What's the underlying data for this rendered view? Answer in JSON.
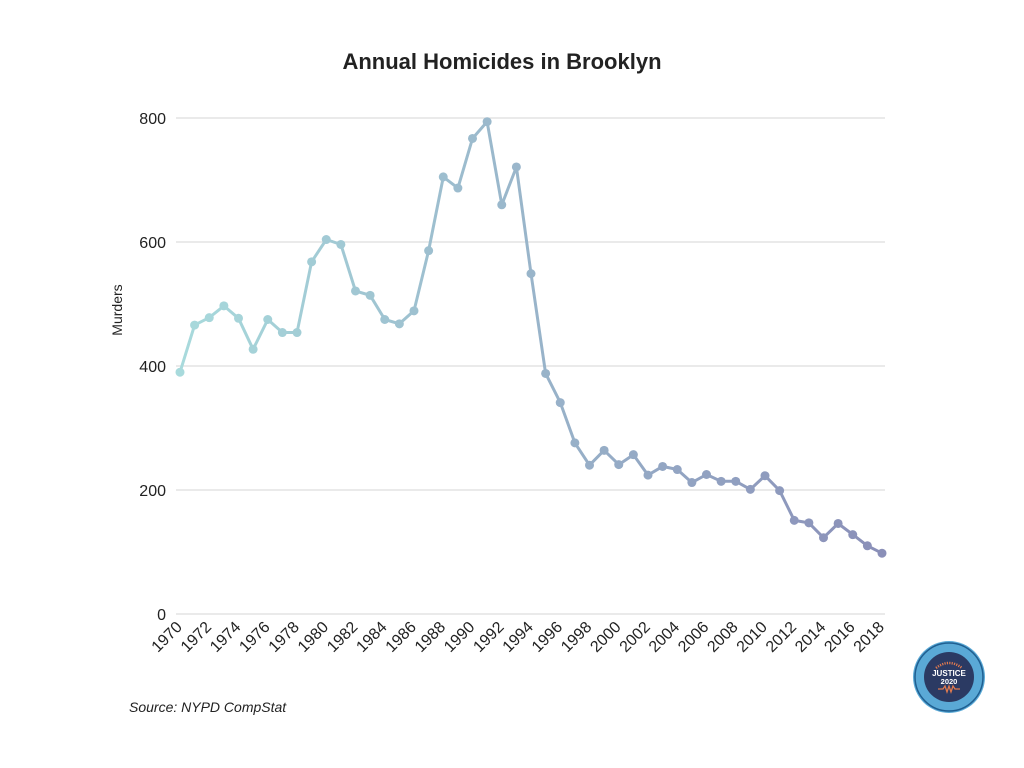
{
  "chart_data": {
    "type": "line",
    "title": "Annual Homicides in Brooklyn",
    "xlabel": "",
    "ylabel": "Murders",
    "ylim": [
      0,
      800
    ],
    "yticks": [
      0,
      200,
      400,
      600,
      800
    ],
    "xlim": [
      1970,
      2018
    ],
    "xticks": [
      1970,
      1972,
      1974,
      1976,
      1978,
      1980,
      1982,
      1984,
      1986,
      1988,
      1990,
      1992,
      1994,
      1996,
      1998,
      2000,
      2002,
      2004,
      2006,
      2008,
      2010,
      2012,
      2014,
      2016,
      2018
    ],
    "grid": true,
    "legend": "none",
    "color_gradient": [
      "#a8dadc",
      "#8a8fb8"
    ],
    "series": [
      {
        "x": [
          1970,
          1971,
          1972,
          1973,
          1974,
          1975,
          1976,
          1977,
          1978,
          1979,
          1980,
          1981,
          1982,
          1983,
          1984,
          1985,
          1986,
          1987,
          1988,
          1989,
          1990,
          1991,
          1992,
          1993,
          1994,
          1995,
          1996,
          1997,
          1998,
          1999,
          2000,
          2001,
          2002,
          2003,
          2004,
          2005,
          2006,
          2007,
          2008,
          2009,
          2010,
          2011,
          2012,
          2013,
          2014,
          2015,
          2016,
          2017,
          2018
        ],
        "values": [
          390,
          466,
          478,
          497,
          477,
          427,
          475,
          454,
          454,
          568,
          604,
          596,
          521,
          514,
          475,
          468,
          489,
          586,
          705,
          687,
          767,
          794,
          660,
          721,
          549,
          388,
          341,
          276,
          240,
          264,
          241,
          257,
          224,
          238,
          233,
          212,
          225,
          214,
          214,
          201,
          223,
          199,
          151,
          147,
          123,
          146,
          128,
          110,
          98
        ]
      }
    ]
  },
  "source": "Source: NYPD CompStat",
  "seal": {
    "ring_text": "BROOKLYN DISTRICT ATTORNEY",
    "line1": "JUSTICE",
    "line2": "2020",
    "colors": {
      "outer": "#5aa9d6",
      "inner": "#2b3a63",
      "accent": "#e07a4f"
    }
  }
}
